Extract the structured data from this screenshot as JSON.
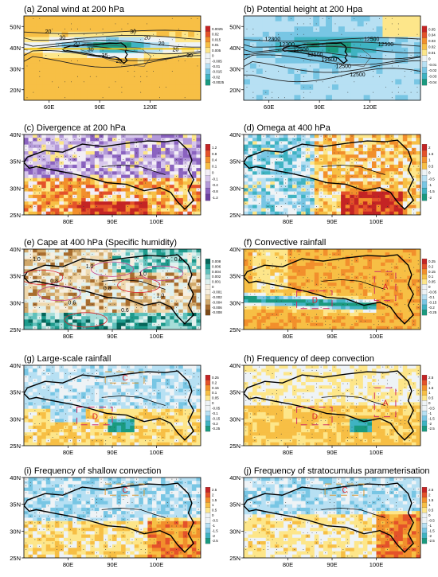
{
  "palettes": {
    "div": [
      "#1a9a7f",
      "#3fb3c2",
      "#78c6e4",
      "#b7e0f3",
      "#eef3f6",
      "#fde68a",
      "#f7bf45",
      "#f28f2c",
      "#e4522a",
      "#c42424"
    ],
    "purple": [
      "#6b3fa0",
      "#8b63c0",
      "#b49ad9",
      "#d8c8ec",
      "#f3eef6",
      "#fde68a",
      "#f7bf45",
      "#f28f2c",
      "#e4522a",
      "#c42424"
    ],
    "hum": [
      "#7b4a1a",
      "#a86d2e",
      "#d1a86a",
      "#efd8ad",
      "#f6efe0",
      "#e0f1ef",
      "#a6ddd8",
      "#5fc0bb",
      "#1e9b8c",
      "#06665a"
    ],
    "line_dark": "#222222",
    "contour_red": "#d8202a",
    "contour_pink": "#c2408f",
    "region_box": "#cf2a64",
    "region_box_dashed": "#d99a3a",
    "plateau": "#000000"
  },
  "panels": [
    {
      "id": "a",
      "title": "(a) Zonal wind at 200 hPa",
      "kind": "global",
      "palette": "div",
      "field": "jet",
      "xticks": [
        "60E",
        "90E",
        "120E"
      ],
      "yticks": [
        "50N",
        "40N",
        "30N",
        "20N"
      ],
      "cbar": [
        "0.0025",
        "0.02",
        "0.015",
        "0.01",
        "0.005",
        "0",
        "-0.005",
        "-0.01",
        "-0.015",
        "-0.02",
        "-0.0025"
      ],
      "contour_labels": [
        "20",
        "30",
        "20",
        "30",
        "35",
        "20",
        "30",
        "20",
        "20",
        "20",
        "30"
      ]
    },
    {
      "id": "b",
      "title": "(b) Potential height at 200 Hpa",
      "kind": "global",
      "palette": "div",
      "field": "height",
      "xticks": [
        "60E",
        "90E",
        "120E"
      ],
      "yticks": [
        "50N",
        "40N",
        "30N",
        "20N"
      ],
      "cbar": [
        "0.05",
        "0.04",
        "0.03",
        "0.02",
        "0.01",
        "0",
        "-0.01",
        "-0.02",
        "-0.03",
        "-0.04"
      ],
      "contour_labels": [
        "12300",
        "12300",
        "12500",
        "12500",
        "12500",
        "12500",
        "12500",
        "12500",
        "12500"
      ]
    },
    {
      "id": "c",
      "title": "(c) Divergence at 200 hPa",
      "kind": "tp",
      "palette": "purple",
      "field": "divergence",
      "xticks": [
        "80E",
        "90E",
        "100E"
      ],
      "yticks": [
        "40N",
        "35N",
        "30N",
        "25N"
      ],
      "cbar": [
        "1.2",
        "0.8",
        "0.4",
        "0.1",
        "0",
        "-0.1",
        "-0.4",
        "-0.8",
        "-1.2"
      ]
    },
    {
      "id": "d",
      "title": "(d) Omega at 400 hPa",
      "kind": "tp",
      "palette": "div",
      "field": "omega",
      "xticks": [
        "80E",
        "90E",
        "100E"
      ],
      "yticks": [
        "40N",
        "35N",
        "30N",
        "25N"
      ],
      "cbar": [
        "2",
        "1.5",
        "1",
        "0.5",
        "0",
        "-0.5",
        "-1",
        "-1.5",
        "-2"
      ]
    },
    {
      "id": "e",
      "title": "(e) Cape at 400 hPa (Specific humidity)",
      "kind": "tp",
      "palette": "hum",
      "field": "humidity",
      "xticks": [
        "80E",
        "90E",
        "100E"
      ],
      "yticks": [
        "40N",
        "35N",
        "30N",
        "25N"
      ],
      "cbar": [
        "0.008",
        "0.006",
        "0.004",
        "0.002",
        "0.001",
        "0",
        "-0.001",
        "-0.002",
        "-0.004",
        "-0.006",
        "-0.008"
      ],
      "contour_labels": [
        "1.0",
        "0.8",
        "0.6",
        "1.0",
        "0.8",
        "0.6",
        "1.0",
        "1.0",
        "0.6"
      ]
    },
    {
      "id": "f",
      "title": "(f) Convective rainfall",
      "kind": "tp",
      "palette": "div",
      "field": "convective",
      "xticks": [
        "80E",
        "90E",
        "100E"
      ],
      "yticks": [
        "40N",
        "35N",
        "30N",
        "25N"
      ],
      "cbar": [
        "0.25",
        "0.2",
        "0.15",
        "0.1",
        "0.05",
        "0",
        "-0.05",
        "-0.1",
        "-0.15",
        "-0.2",
        "-0.25"
      ],
      "regions": [
        "D",
        "A"
      ]
    },
    {
      "id": "g",
      "title": "(g) Large-scale rainfall",
      "kind": "tp",
      "palette": "div",
      "field": "largescale",
      "xticks": [
        "80E",
        "90E",
        "100E"
      ],
      "yticks": [
        "40N",
        "35N",
        "30N",
        "25N"
      ],
      "cbar": [
        "0.25",
        "0.2",
        "0.15",
        "0.1",
        "0.05",
        "0",
        "-0.05",
        "-0.1",
        "-0.15",
        "-0.2",
        "-0.25"
      ],
      "regions": [
        "D",
        "C"
      ]
    },
    {
      "id": "h",
      "title": "(h) Frequency of deep convection",
      "kind": "tp",
      "palette": "div",
      "field": "deep",
      "xticks": [
        "80E",
        "90E",
        "100E"
      ],
      "yticks": [
        "40N",
        "35N",
        "30N",
        "25N"
      ],
      "cbar": [
        "2.5",
        "2",
        "1.5",
        "1",
        "0.5",
        "0",
        "-0.5",
        "-1",
        "-1.5",
        "-2",
        "-2.5"
      ],
      "regions": [
        "D",
        "A"
      ]
    },
    {
      "id": "i",
      "title": "(i) Frequency of shallow convection",
      "kind": "tp",
      "palette": "div",
      "field": "shallow",
      "xticks": [
        "80E",
        "90E",
        "100E"
      ],
      "yticks": [
        "40N",
        "35N",
        "30N",
        "25N"
      ],
      "cbar": [
        "2.5",
        "2",
        "1.5",
        "1",
        "0.5",
        "0",
        "-0.5",
        "-1",
        "-1.5",
        "-2",
        "-2.5"
      ],
      "regions": [
        "C"
      ]
    },
    {
      "id": "j",
      "title": "(j) Frequency of stratocumulus parameterisation",
      "kind": "tp",
      "palette": "div",
      "field": "strato",
      "xticks": [
        "80E",
        "90E",
        "100E"
      ],
      "yticks": [
        "40N",
        "35N",
        "30N",
        "25N"
      ],
      "cbar": [
        "2.5",
        "2",
        "1.5",
        "1",
        "0.5",
        "0",
        "-0.5",
        "-1",
        "-1.5",
        "-2",
        "-2.5"
      ],
      "regions": [
        "C"
      ]
    }
  ]
}
